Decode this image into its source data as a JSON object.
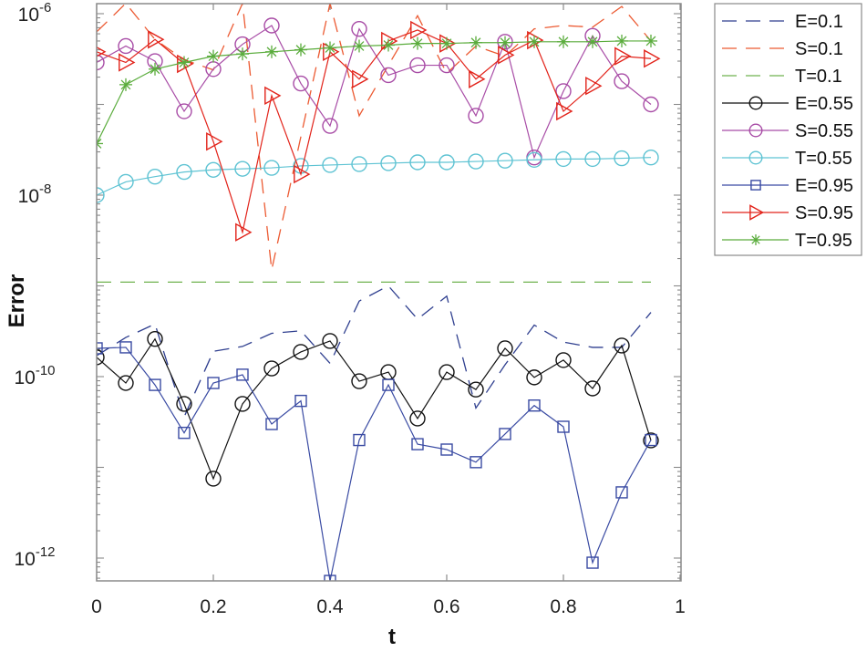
{
  "chart_data": {
    "type": "line",
    "title": "",
    "xlabel": "t",
    "ylabel": "Error",
    "yscale": "log",
    "xlim": [
      0,
      1
    ],
    "ylim": [
      1.26e-06,
      5.6e-13
    ],
    "x_ticks": [
      "0",
      "0.2",
      "0.4",
      "0.6",
      "0.8",
      "1"
    ],
    "y_ticks": [
      {
        "base": "10",
        "exp": "-6"
      },
      {
        "base": "10",
        "exp": "-8"
      },
      {
        "base": "10",
        "exp": "-10"
      },
      {
        "base": "10",
        "exp": "-12"
      }
    ],
    "legend_position": "outside-top-right",
    "x": [
      0,
      0.05,
      0.1,
      0.15,
      0.2,
      0.25,
      0.3,
      0.35,
      0.4,
      0.45,
      0.5,
      0.55,
      0.6,
      0.65,
      0.7,
      0.75,
      0.8,
      0.85,
      0.9,
      0.95
    ],
    "series": [
      {
        "name": "E=0.1",
        "color": "#2f3f8f",
        "style": "dashed",
        "marker": "none",
        "values": [
          1.7e-10,
          2.7e-10,
          3.8e-10,
          3.6e-11,
          1.9e-10,
          2.15e-10,
          3e-10,
          3.2e-10,
          1.4e-10,
          6.8e-10,
          1e-09,
          4.3e-10,
          7.7e-10,
          4.5e-11,
          1.35e-10,
          3.7e-10,
          2.4e-10,
          2.1e-10,
          2.1e-10,
          5.1e-10
        ]
      },
      {
        "name": "S=0.1",
        "color": "#ec5a32",
        "style": "dashed",
        "marker": "none",
        "values": [
          6.3e-07,
          1.3e-06,
          5.2e-07,
          3.1e-07,
          2.4e-07,
          1.3e-06,
          1.5e-09,
          4.4e-08,
          1.3e-06,
          7.5e-08,
          2.7e-07,
          9.5e-07,
          2.2e-07,
          4.4e-07,
          3.4e-07,
          6.8e-07,
          7.4e-07,
          7.1e-07,
          1.2e-06,
          5e-07
        ]
      },
      {
        "name": "T=0.1",
        "color": "#6fb24f",
        "style": "dashed",
        "marker": "none",
        "values": [
          1.1e-09,
          1.1e-09,
          1.1e-09,
          1.1e-09,
          1.1e-09,
          1.1e-09,
          1.1e-09,
          1.1e-09,
          1.1e-09,
          1.1e-09,
          1.1e-09,
          1.1e-09,
          1.1e-09,
          1.1e-09,
          1.1e-09,
          1.1e-09,
          1.1e-09,
          1.1e-09,
          1.1e-09,
          1.1e-09
        ]
      },
      {
        "name": "E=0.55",
        "color": "#111111",
        "style": "solid",
        "marker": "circle",
        "values": [
          1.63e-10,
          8.5e-11,
          2.6e-10,
          5e-11,
          7.5e-12,
          5e-11,
          1.23e-10,
          1.87e-10,
          2.47e-10,
          8.9e-11,
          1.12e-10,
          3.45e-11,
          1.12e-10,
          7.2e-11,
          2.05e-10,
          9.8e-11,
          1.52e-10,
          7.4e-11,
          2.2e-10,
          1.98e-11
        ]
      },
      {
        "name": "S=0.55",
        "color": "#a84ca6",
        "style": "solid",
        "marker": "circle",
        "values": [
          2.9e-07,
          4.4e-07,
          3e-07,
          8.4e-08,
          2.45e-07,
          4.6e-07,
          7.4e-07,
          1.7e-07,
          5.8e-08,
          6.8e-07,
          2.1e-07,
          2.7e-07,
          2.7e-07,
          7.5e-08,
          4.9e-07,
          2.6e-08,
          1.4e-07,
          5.7e-07,
          1.8e-07,
          1e-07
        ]
      },
      {
        "name": "T=0.55",
        "color": "#5ec3d3",
        "style": "solid",
        "marker": "circle",
        "values": [
          1e-08,
          1.4e-08,
          1.6e-08,
          1.8e-08,
          1.9e-08,
          1.95e-08,
          2e-08,
          2.1e-08,
          2.15e-08,
          2.2e-08,
          2.25e-08,
          2.3e-08,
          2.3e-08,
          2.35e-08,
          2.4e-08,
          2.45e-08,
          2.5e-08,
          2.5e-08,
          2.55e-08,
          2.6e-08
        ]
      },
      {
        "name": "E=0.95",
        "color": "#3a4ba3",
        "style": "solid",
        "marker": "square",
        "values": [
          2.05e-10,
          2.1e-10,
          8.1e-11,
          2.4e-11,
          8.5e-11,
          1.05e-10,
          3e-11,
          5.4e-11,
          5.6e-13,
          2e-11,
          8.1e-11,
          1.8e-11,
          1.57e-11,
          1.14e-11,
          2.33e-11,
          4.8e-11,
          2.8e-11,
          8.9e-13,
          5.3e-12,
          2e-11
        ]
      },
      {
        "name": "S=0.95",
        "color": "#e2231a",
        "style": "solid",
        "marker": "triangle-right",
        "values": [
          3.8e-07,
          2.9e-07,
          5.2e-07,
          2.8e-07,
          3.9e-08,
          3.9e-09,
          1.25e-07,
          1.7e-08,
          3.8e-07,
          1.9e-07,
          5e-07,
          6.6e-07,
          4.7e-07,
          1.9e-07,
          3.5e-07,
          5.1e-07,
          8.4e-08,
          1.6e-07,
          3.4e-07,
          3.2e-07
        ]
      },
      {
        "name": "T=0.95",
        "color": "#5aac3c",
        "style": "solid",
        "marker": "asterisk",
        "values": [
          3.7e-08,
          1.65e-07,
          2.45e-07,
          2.9e-07,
          3.4e-07,
          3.6e-07,
          3.8e-07,
          4e-07,
          4.2e-07,
          4.4e-07,
          4.5e-07,
          4.7e-07,
          4.7e-07,
          4.8e-07,
          4.8e-07,
          4.9e-07,
          4.9e-07,
          4.9e-07,
          5e-07,
          5e-07
        ]
      }
    ]
  }
}
